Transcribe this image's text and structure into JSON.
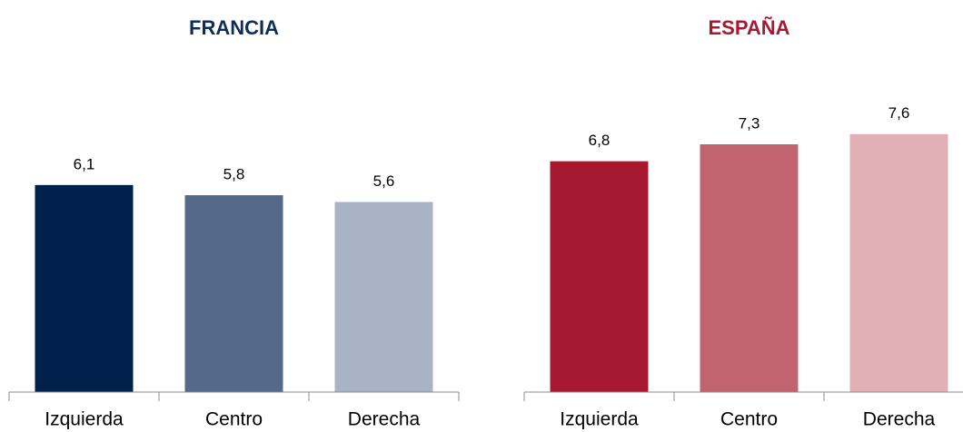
{
  "chart_data": [
    {
      "type": "bar",
      "title": "FRANCIA",
      "title_color": "#0f2d5a",
      "categories": [
        "Izquierda",
        "Centro",
        "Derecha"
      ],
      "values": [
        6.1,
        5.8,
        5.6
      ],
      "value_labels": [
        "6,1",
        "5,8",
        "5,6"
      ],
      "colors": [
        "#00214b",
        "#546a88",
        "#a8b3c5"
      ],
      "ylim": [
        0,
        10
      ]
    },
    {
      "type": "bar",
      "title": "ESPAÑA",
      "title_color": "#a71930",
      "categories": [
        "Izquierda",
        "Centro",
        "Derecha"
      ],
      "values": [
        6.8,
        7.3,
        7.6
      ],
      "value_labels": [
        "6,8",
        "7,3",
        "7,6"
      ],
      "colors": [
        "#a71930",
        "#c26470",
        "#e0b0b6"
      ],
      "ylim": [
        0,
        10
      ]
    }
  ]
}
